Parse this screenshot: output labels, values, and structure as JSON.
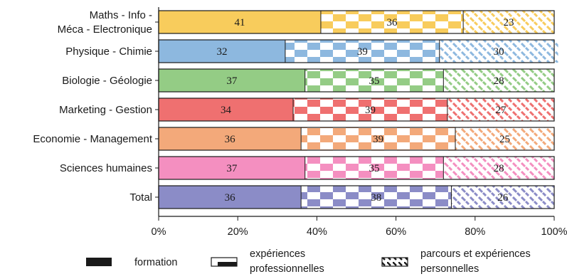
{
  "chart_data": {
    "type": "bar",
    "orientation": "horizontal",
    "stacked": true,
    "categories": [
      [
        "Maths - Info -",
        "Méca - Electronique"
      ],
      [
        "Physique - Chimie"
      ],
      [
        "Biologie - Géologie"
      ],
      [
        "Marketing - Gestion"
      ],
      [
        "Economie - Management"
      ],
      [
        "Sciences humaines"
      ],
      [
        "Total"
      ]
    ],
    "category_colors": [
      "#f8cc5c",
      "#8db8df",
      "#94cc85",
      "#ef7070",
      "#f3a97a",
      "#f48fc0",
      "#8b8cc7"
    ],
    "series": [
      {
        "name": "formation",
        "pattern": "solid",
        "values": [
          41,
          32,
          37,
          34,
          36,
          37,
          36
        ],
        "labels": [
          "41",
          "32",
          "37",
          "34",
          "36",
          "37",
          "36"
        ]
      },
      {
        "name": "expériences professionnelles",
        "pattern": "checkerboard",
        "values": [
          36,
          39,
          35,
          39,
          39,
          35,
          38
        ],
        "labels": [
          "36",
          "39",
          "35",
          "39",
          "39",
          "35",
          "38"
        ]
      },
      {
        "name": "parcours et expériences personnelles",
        "pattern": "diagonal-dashes",
        "values": [
          23,
          30,
          28,
          27,
          25,
          28,
          26
        ],
        "labels": [
          "23",
          "30",
          "28",
          "27",
          "25",
          "28",
          "26"
        ]
      }
    ],
    "xlim": [
      0,
      100
    ],
    "x_ticks": [
      "0%",
      "20%",
      "40%",
      "60%",
      "80%",
      "100%"
    ],
    "legend": {
      "position": "bottom",
      "items": [
        {
          "lines": [
            "formation"
          ],
          "swatch": "solid"
        },
        {
          "lines": [
            "expériences",
            "professionnelles"
          ],
          "swatch": "half-solid"
        },
        {
          "lines": [
            "parcours et expériences",
            "personnelles"
          ],
          "swatch": "dashed-fill"
        }
      ]
    },
    "grid": false
  }
}
